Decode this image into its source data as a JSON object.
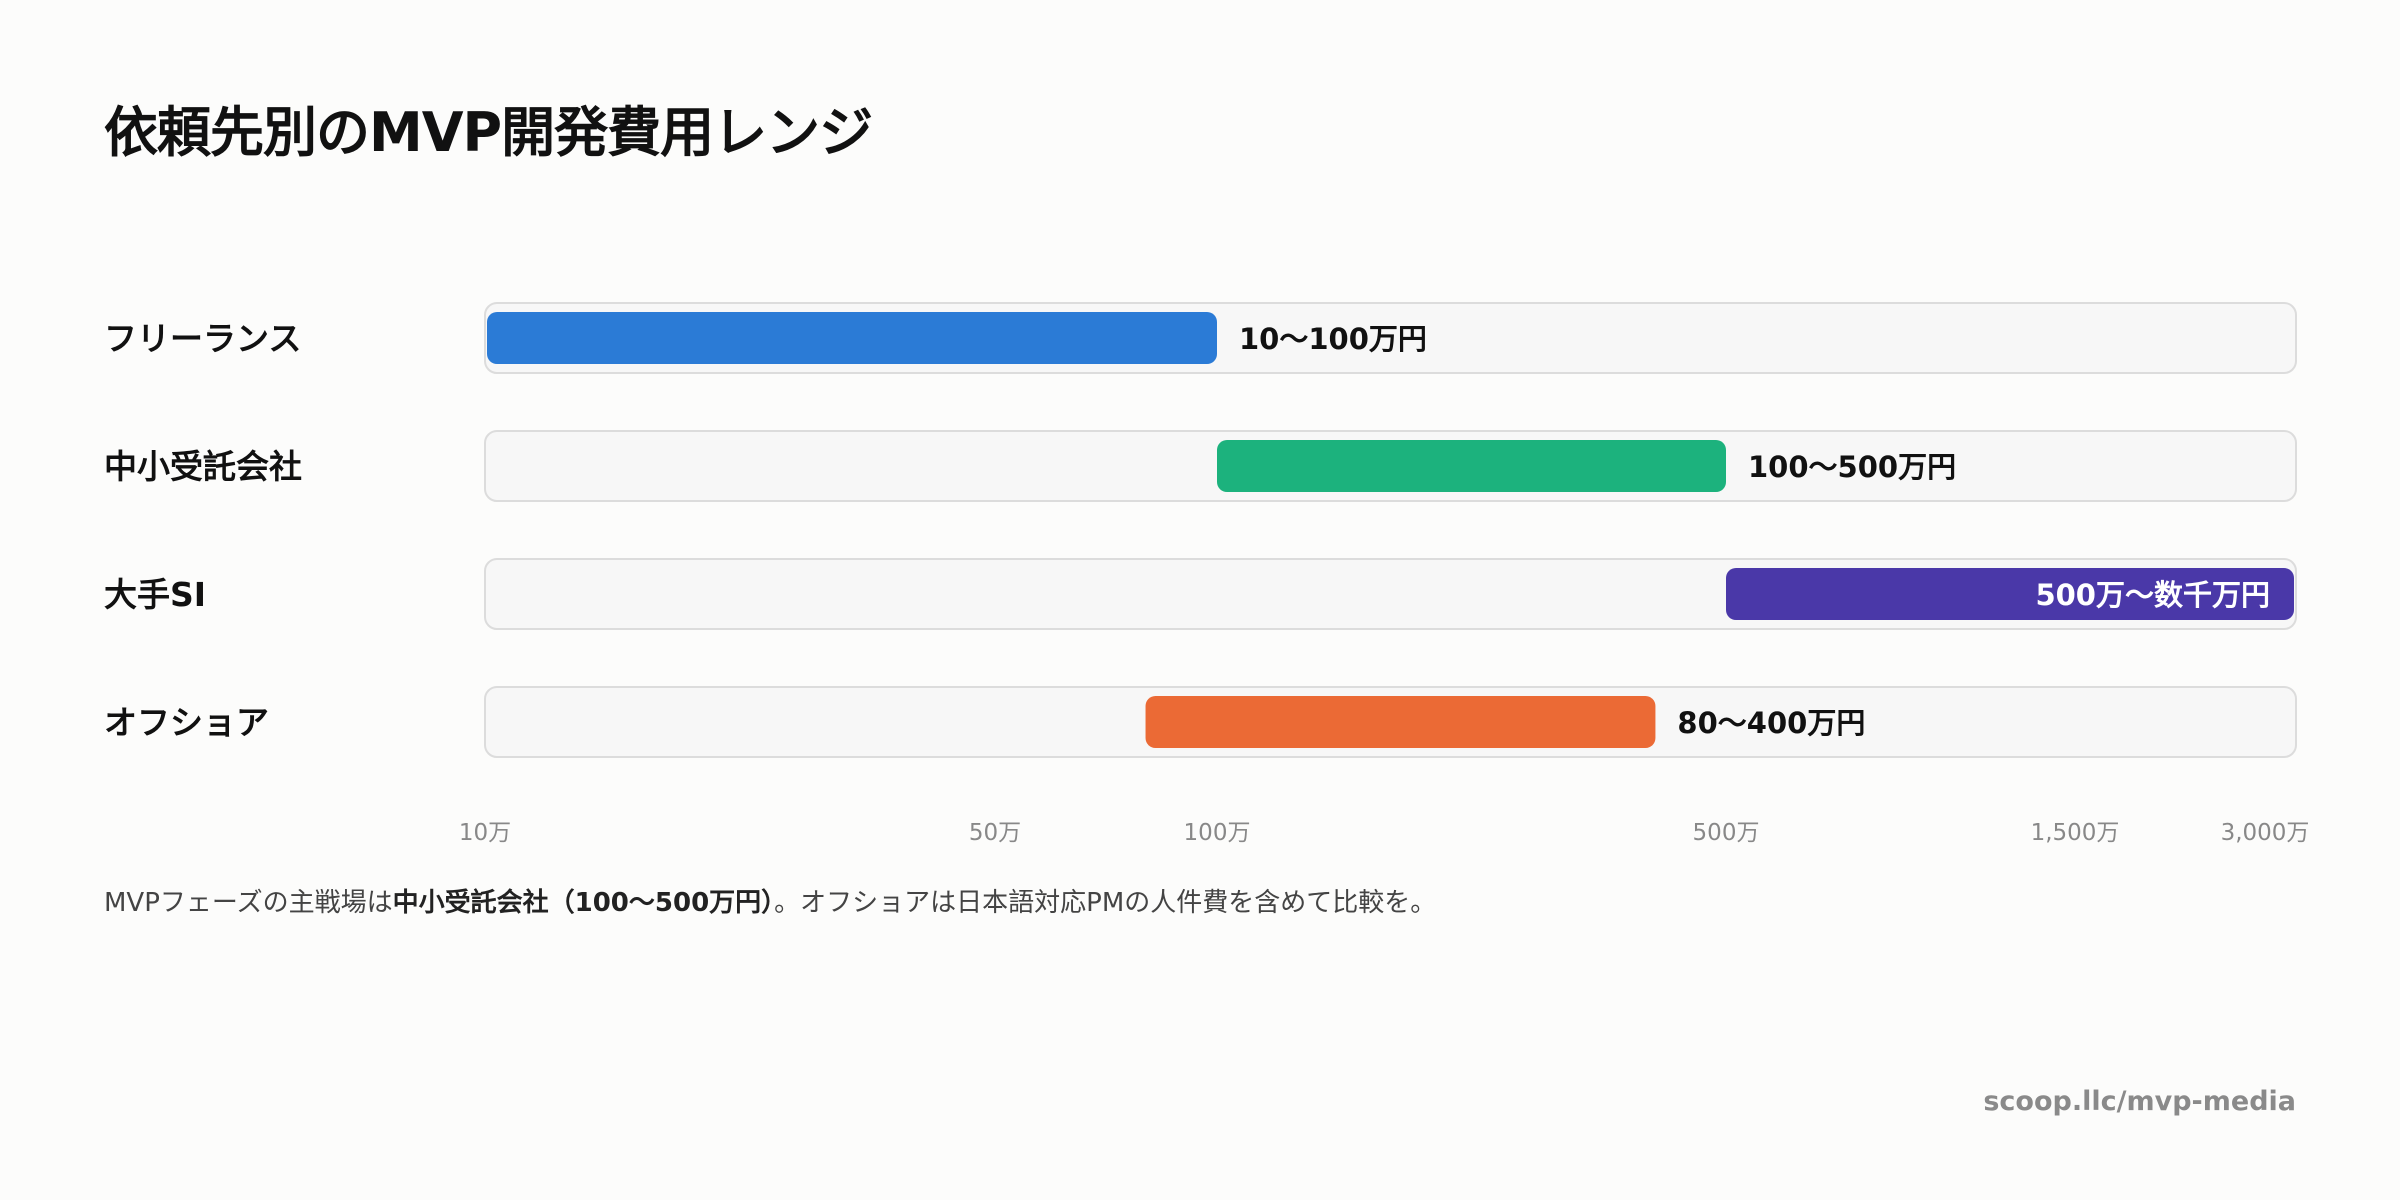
{
  "chart_data": {
    "type": "bar",
    "title": "依頼先別のMVP開発費用レンジ",
    "xscale": "custom-log",
    "xlim": [
      "10万",
      "3,000万"
    ],
    "x_ticks": [
      "10万",
      "50万",
      "100万",
      "500万",
      "1,500万",
      "3,000万"
    ],
    "rows": [
      {
        "category": "フリーランス",
        "low_man_yen": 10,
        "high_man_yen": 100,
        "label": "10〜100万円",
        "color": "#2b7bd6"
      },
      {
        "category": "中小受託会社",
        "low_man_yen": 100,
        "high_man_yen": 500,
        "label": "100〜500万円",
        "color": "#1cb27d"
      },
      {
        "category": "大手SI",
        "low_man_yen": 500,
        "high_man_yen": 3000,
        "label": "500万〜数千万円",
        "color": "#4a38a8"
      },
      {
        "category": "オフショア",
        "low_man_yen": 80,
        "high_man_yen": 400,
        "label": "80〜400万円",
        "color": "#eb6a35"
      }
    ]
  },
  "note": {
    "prefix": "MVPフェーズの主戦場は",
    "bold": "中小受託会社（100〜500万円）",
    "suffix": "。オフショアは日本語対応PMの人件費を含めて比較を。"
  },
  "source": "scoop.llc/mvp-media"
}
